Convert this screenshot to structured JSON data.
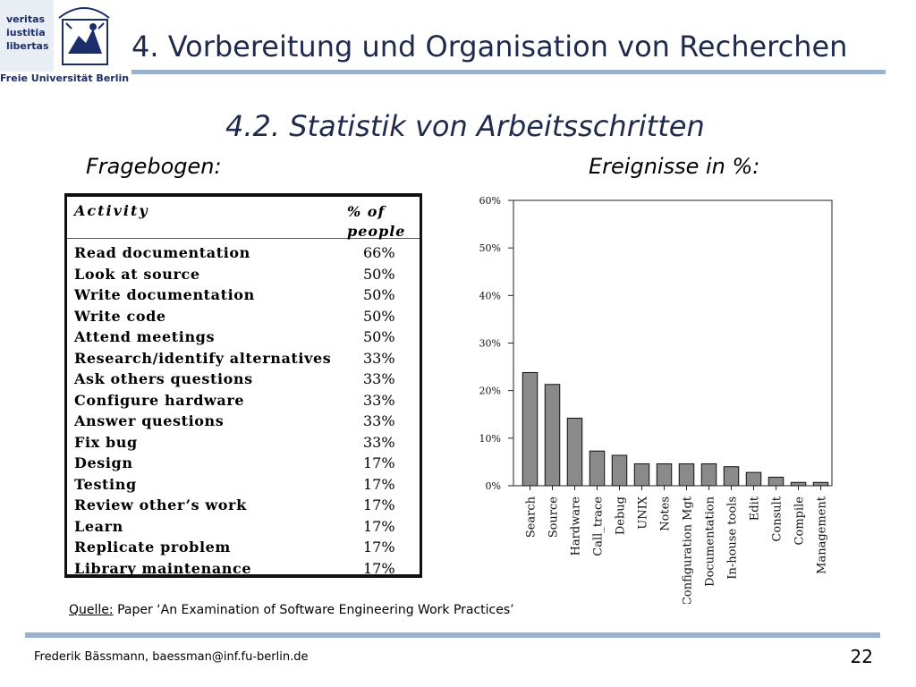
{
  "logo": {
    "words": [
      "veritas",
      "iustitia",
      "libertas"
    ],
    "name": "Freie Universität Berlin"
  },
  "header": {
    "title": "4. Vorbereitung und Organisation von Recherchen",
    "subtitle": "4.2. Statistik von Arbeitsschritten"
  },
  "labels": {
    "left": "Fragebogen:",
    "right": "Ereignisse in %:"
  },
  "table": {
    "headers": [
      "Activity",
      "% of",
      "people"
    ],
    "rows": [
      {
        "activity": "Read documentation",
        "percent": "66%"
      },
      {
        "activity": "Look at source",
        "percent": "50%"
      },
      {
        "activity": "Write documentation",
        "percent": "50%"
      },
      {
        "activity": "Write code",
        "percent": "50%"
      },
      {
        "activity": "Attend meetings",
        "percent": "50%"
      },
      {
        "activity": "Research/identify alternatives",
        "percent": "33%"
      },
      {
        "activity": "Ask others questions",
        "percent": "33%"
      },
      {
        "activity": "Configure hardware",
        "percent": "33%"
      },
      {
        "activity": "Answer questions",
        "percent": "33%"
      },
      {
        "activity": "Fix bug",
        "percent": "33%"
      },
      {
        "activity": "Design",
        "percent": "17%"
      },
      {
        "activity": "Testing",
        "percent": "17%"
      },
      {
        "activity": "Review other’s work",
        "percent": "17%"
      },
      {
        "activity": "Learn",
        "percent": "17%"
      },
      {
        "activity": "Replicate problem",
        "percent": "17%"
      },
      {
        "activity": "Library maintenance",
        "percent": "17%"
      }
    ]
  },
  "chart_data": {
    "type": "bar",
    "categories": [
      "Search",
      "Source",
      "Hardware",
      "Call_trace",
      "Debug",
      "UNIX",
      "Notes",
      "Configuration Mgt",
      "Documentation",
      "In-house tools",
      "Edit",
      "Consult",
      "Compile",
      "Management"
    ],
    "values": [
      23.8,
      21.3,
      14.2,
      7.3,
      6.4,
      4.6,
      4.6,
      4.6,
      4.6,
      4.0,
      2.8,
      1.8,
      0.7,
      0.7
    ],
    "ylim": [
      0,
      60
    ],
    "yticks": [
      "0%",
      "10%",
      "20%",
      "30%",
      "40%",
      "50%",
      "60%"
    ],
    "bar_color": "#8a8a8a",
    "grid": false
  },
  "source": {
    "label": "Quelle:",
    "text": "Paper ‘An Examination of Software Engineering Work Practices’"
  },
  "footer": {
    "author": "Frederik Bässmann, baessman@inf.fu-berlin.de",
    "page": "22"
  }
}
